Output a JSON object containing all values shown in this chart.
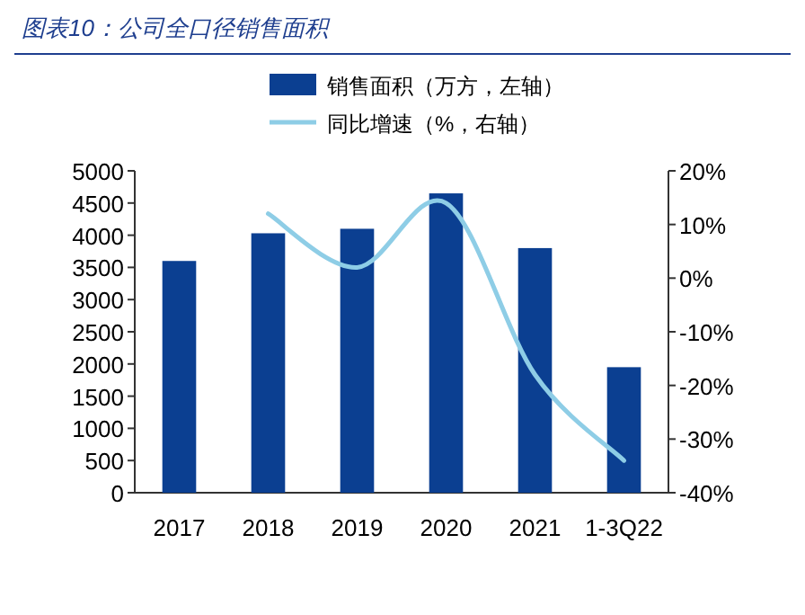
{
  "chart_data": {
    "type": "bar",
    "title": "图表10：公司全口径销售面积",
    "categories": [
      "2017",
      "2018",
      "2019",
      "2020",
      "2021",
      "1-3Q22"
    ],
    "series": [
      {
        "name": "销售面积（万方，左轴）",
        "color": "#0b3f91",
        "values": [
          3600,
          4030,
          4100,
          4650,
          3800,
          1950
        ]
      },
      {
        "name": "同比增速（%，右轴）",
        "type": "line",
        "axis": "y2",
        "color": "#8ecde6",
        "values": [
          null,
          12,
          2,
          14,
          -18,
          -34
        ]
      }
    ],
    "ylim": [
      0,
      5000
    ],
    "yticks": [
      0,
      500,
      1000,
      1500,
      2000,
      2500,
      3000,
      3500,
      4000,
      4500,
      5000
    ],
    "y2lim": [
      -40,
      20
    ],
    "y2ticks": [
      {
        "value": -40,
        "label": "-40%"
      },
      {
        "value": -30,
        "label": "-30%"
      },
      {
        "value": -20,
        "label": "-20%"
      },
      {
        "value": -10,
        "label": "-10%"
      },
      {
        "value": 0,
        "label": "0%"
      },
      {
        "value": 10,
        "label": "10%"
      },
      {
        "value": 20,
        "label": "20%"
      }
    ],
    "legend": "top"
  }
}
